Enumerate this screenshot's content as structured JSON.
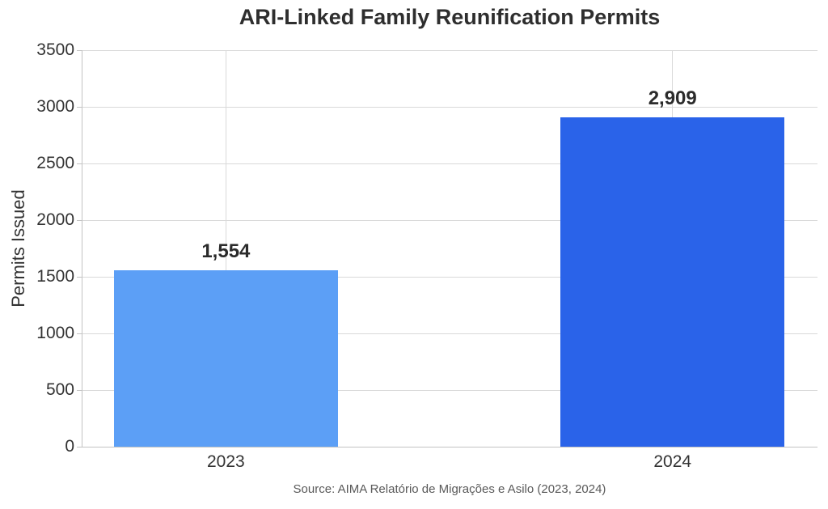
{
  "chart_data": {
    "type": "bar",
    "title": "ARI-Linked Family Reunification Permits",
    "xlabel": "",
    "ylabel": "Permits Issued",
    "categories": [
      "2023",
      "2024"
    ],
    "values": [
      1554,
      2909
    ],
    "value_labels": [
      "1,554",
      "2,909"
    ],
    "bar_colors": [
      "#5c9ff6",
      "#2a63e9"
    ],
    "ylim": [
      0,
      3500
    ],
    "ytick_step": 500,
    "yticks": [
      "0",
      "500",
      "1000",
      "1500",
      "2000",
      "2500",
      "3000",
      "3500"
    ],
    "grid": true,
    "legend_position": "none"
  },
  "footer": {
    "source": "Source: AIMA Relatório de Migrações e Asilo (2023, 2024)"
  },
  "colors": {
    "background": "#ffffff",
    "grid": "#d9d9d9",
    "axis": "#c3c3c3",
    "tick_text": "#333333",
    "title_text": "#2e2e2e",
    "value_text": "#2b2b2b",
    "source_text": "#595959"
  }
}
